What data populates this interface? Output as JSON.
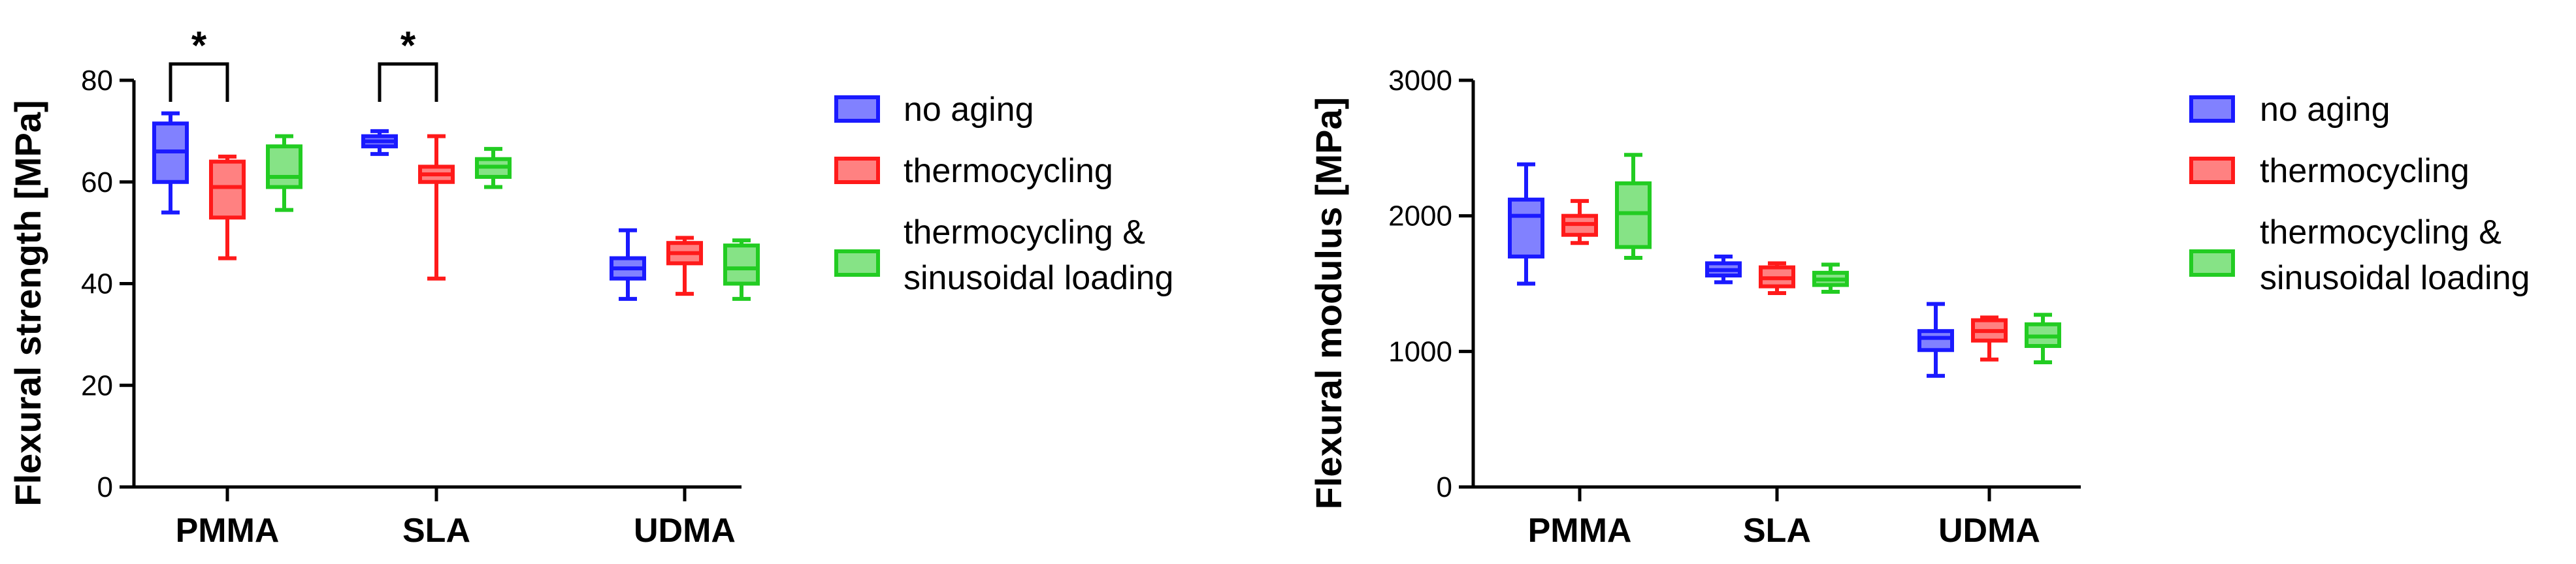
{
  "colors": {
    "no_aging": "#1a1aff",
    "thermocycling": "#ff1a1a",
    "thermocycling_loading": "#22cc22"
  },
  "chart_data": [
    {
      "type": "box",
      "ylabel": "Flexural strength [MPa]",
      "ylim": [
        0,
        80
      ],
      "yticks": [
        "0",
        "20",
        "40",
        "60",
        "80"
      ],
      "categories": [
        "PMMA",
        "SLA",
        "UDMA"
      ],
      "legend": {
        "position": "right",
        "entries": [
          "no aging",
          "thermocycling",
          "thermocycling &",
          "sinusoidal loading"
        ]
      },
      "series": [
        {
          "name": "no aging",
          "boxes": [
            {
              "min": 54,
              "q1": 60,
              "median": 66,
              "q3": 71.5,
              "max": 73.5
            },
            {
              "min": 65.5,
              "q1": 67,
              "median": 68,
              "q3": 69,
              "max": 70
            },
            {
              "min": 37,
              "q1": 41,
              "median": 43,
              "q3": 45,
              "max": 50.5
            }
          ]
        },
        {
          "name": "thermocycling",
          "boxes": [
            {
              "min": 45,
              "q1": 53,
              "median": 59,
              "q3": 64,
              "max": 65
            },
            {
              "min": 41,
              "q1": 60,
              "median": 61.5,
              "q3": 63,
              "max": 69
            },
            {
              "min": 38,
              "q1": 44,
              "median": 46,
              "q3": 48,
              "max": 49
            }
          ]
        },
        {
          "name": "thermocycling & sinusoidal loading",
          "boxes": [
            {
              "min": 54.5,
              "q1": 59,
              "median": 61,
              "q3": 67,
              "max": 69
            },
            {
              "min": 59,
              "q1": 61,
              "median": 63,
              "q3": 64.5,
              "max": 66.5
            },
            {
              "min": 37,
              "q1": 40,
              "median": 43,
              "q3": 47.5,
              "max": 48.5
            }
          ]
        }
      ],
      "significance": [
        {
          "category": "PMMA",
          "label": "*"
        },
        {
          "category": "SLA",
          "label": "*"
        }
      ]
    },
    {
      "type": "box",
      "ylabel": "Flexural modulus [MPa]",
      "ylim": [
        0,
        3000
      ],
      "yticks": [
        "0",
        "1000",
        "2000",
        "3000"
      ],
      "categories": [
        "PMMA",
        "SLA",
        "UDMA"
      ],
      "legend": {
        "position": "right",
        "entries": [
          "no aging",
          "thermocycling",
          "thermocycling &",
          "sinusoidal loading"
        ]
      },
      "series": [
        {
          "name": "no aging",
          "boxes": [
            {
              "min": 1500,
              "q1": 1700,
              "median": 2000,
              "q3": 2120,
              "max": 2380
            },
            {
              "min": 1510,
              "q1": 1560,
              "median": 1600,
              "q3": 1650,
              "max": 1700
            },
            {
              "min": 820,
              "q1": 1010,
              "median": 1100,
              "q3": 1150,
              "max": 1350
            }
          ]
        },
        {
          "name": "thermocycling",
          "boxes": [
            {
              "min": 1800,
              "q1": 1860,
              "median": 1940,
              "q3": 2000,
              "max": 2110
            },
            {
              "min": 1430,
              "q1": 1480,
              "median": 1540,
              "q3": 1620,
              "max": 1650
            },
            {
              "min": 940,
              "q1": 1080,
              "median": 1150,
              "q3": 1230,
              "max": 1250
            }
          ]
        },
        {
          "name": "thermocycling & sinusoidal loading",
          "boxes": [
            {
              "min": 1690,
              "q1": 1770,
              "median": 2020,
              "q3": 2240,
              "max": 2450
            },
            {
              "min": 1440,
              "q1": 1490,
              "median": 1530,
              "q3": 1580,
              "max": 1640
            },
            {
              "min": 920,
              "q1": 1040,
              "median": 1110,
              "q3": 1200,
              "max": 1270
            }
          ]
        }
      ],
      "significance": []
    }
  ]
}
